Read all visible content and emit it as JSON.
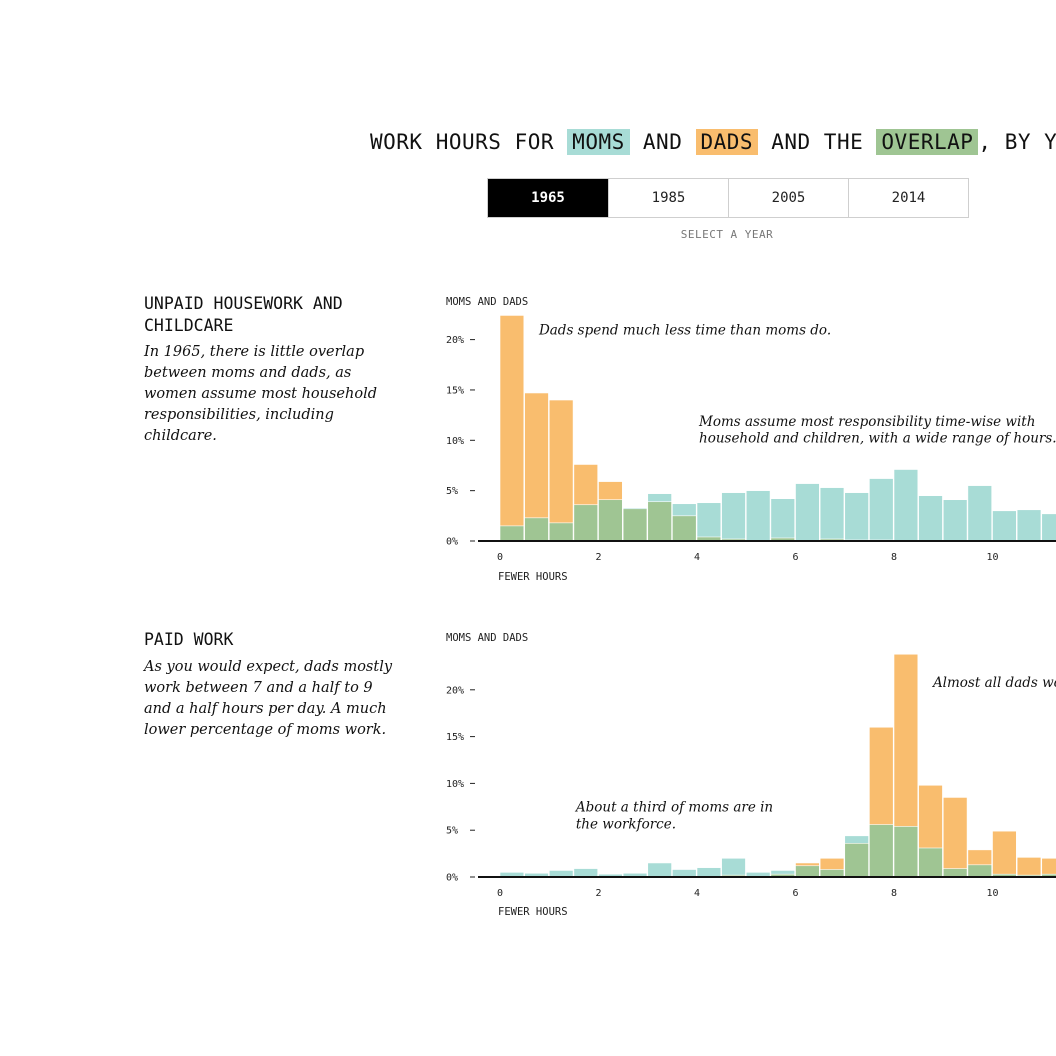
{
  "header": {
    "title_parts": [
      "WORK HOURS FOR",
      "MOMS",
      "AND",
      "DADS",
      "AND THE",
      "OVERLAP",
      ", BY YE"
    ],
    "colors": {
      "moms": "#a8dcd6",
      "dads": "#f9bd6e",
      "overlap": "#9fc593"
    }
  },
  "year_selector": {
    "years": [
      "1965",
      "1985",
      "2005",
      "2014"
    ],
    "selected": "1965",
    "hint": "SELECT A YEAR"
  },
  "sections": [
    {
      "heading_line1": "UNPAID HOUSEWORK AND",
      "heading_line2": "CHILDCARE",
      "description": "In 1965, there is little overlap between moms and dads, as women assume most household responsibilities, including childcare."
    },
    {
      "heading_line1": "PAID WORK",
      "heading_line2": "",
      "description": "As you would expect, dads mostly work between 7 and a half to 9 and a half hours per day. A much lower percentage of moms work."
    }
  ],
  "chart_data": [
    {
      "type": "bar",
      "subtype": "overlapping-histogram",
      "title": "",
      "legend_label": "MOMS AND DADS",
      "xlabel": "FEWER HOURS",
      "ylabel": "",
      "bin_width_hours": 0.5,
      "xlim": [
        0,
        11.25
      ],
      "ylim": [
        0,
        0.22
      ],
      "x_ticks": [
        "0",
        "2",
        "4",
        "6",
        "8",
        "10"
      ],
      "y_ticks": [
        "0%",
        "5%",
        "10%",
        "15%",
        "20%"
      ],
      "series": [
        {
          "name": "DADS",
          "color": "#f9bd6e",
          "values": [
            0.224,
            0.147,
            0.14,
            0.076,
            0.059,
            0.032,
            0.039,
            0.025,
            0.004,
            0.002,
            0,
            0.003,
            0,
            0.002,
            0.001,
            0.001,
            0,
            0,
            0,
            0,
            0,
            0,
            0
          ]
        },
        {
          "name": "MOMS",
          "color": "#a8dcd6",
          "values": [
            0.015,
            0.023,
            0.018,
            0.036,
            0.041,
            0.033,
            0.047,
            0.037,
            0.038,
            0.048,
            0.05,
            0.042,
            0.057,
            0.053,
            0.048,
            0.062,
            0.071,
            0.045,
            0.041,
            0.055,
            0.03,
            0.031,
            0.027
          ]
        }
      ],
      "annotations": [
        {
          "text": "Dads spend much less time than moms do.",
          "x": 0.75,
          "y": 0.205
        },
        {
          "text": "Moms assume most responsibility time-wise with",
          "x": 4.0,
          "y": 0.114
        },
        {
          "text": "household and children, with a wide range of hours.",
          "x": 4.0,
          "y": 0.098
        }
      ],
      "colors": {
        "dads": "#f9bd6e",
        "moms": "#a8dcd6",
        "overlap": "#9fc593"
      }
    },
    {
      "type": "bar",
      "subtype": "overlapping-histogram",
      "title": "",
      "legend_label": "MOMS AND DADS",
      "xlabel": "FEWER HOURS",
      "ylabel": "",
      "bin_width_hours": 0.5,
      "xlim": [
        0,
        11.25
      ],
      "ylim": [
        0,
        0.24
      ],
      "x_ticks": [
        "0",
        "2",
        "4",
        "6",
        "8",
        "10"
      ],
      "y_ticks": [
        "0%",
        "5%",
        "10%",
        "15%",
        "20%"
      ],
      "series": [
        {
          "name": "DADS",
          "color": "#f9bd6e",
          "values": [
            0,
            0,
            0,
            0,
            0,
            0,
            0,
            0,
            0,
            0.002,
            0,
            0.003,
            0.015,
            0.02,
            0.036,
            0.16,
            0.238,
            0.098,
            0.085,
            0.029,
            0.049,
            0.021,
            0.02
          ]
        },
        {
          "name": "MOMS",
          "color": "#a8dcd6",
          "values": [
            0.005,
            0.004,
            0.007,
            0.009,
            0.003,
            0.004,
            0.015,
            0.008,
            0.01,
            0.02,
            0.005,
            0.007,
            0.012,
            0.008,
            0.044,
            0.056,
            0.054,
            0.031,
            0.009,
            0.013,
            0.003,
            0.002,
            0.003
          ]
        }
      ],
      "annotations": [
        {
          "text": "Almost all dads wo",
          "x": 8.75,
          "y": 0.203
        },
        {
          "text": "About a third of moms are in",
          "x": 1.5,
          "y": 0.07
        },
        {
          "text": "the workforce.",
          "x": 1.5,
          "y": 0.052
        }
      ],
      "colors": {
        "dads": "#f9bd6e",
        "moms": "#a8dcd6",
        "overlap": "#9fc593"
      }
    }
  ]
}
